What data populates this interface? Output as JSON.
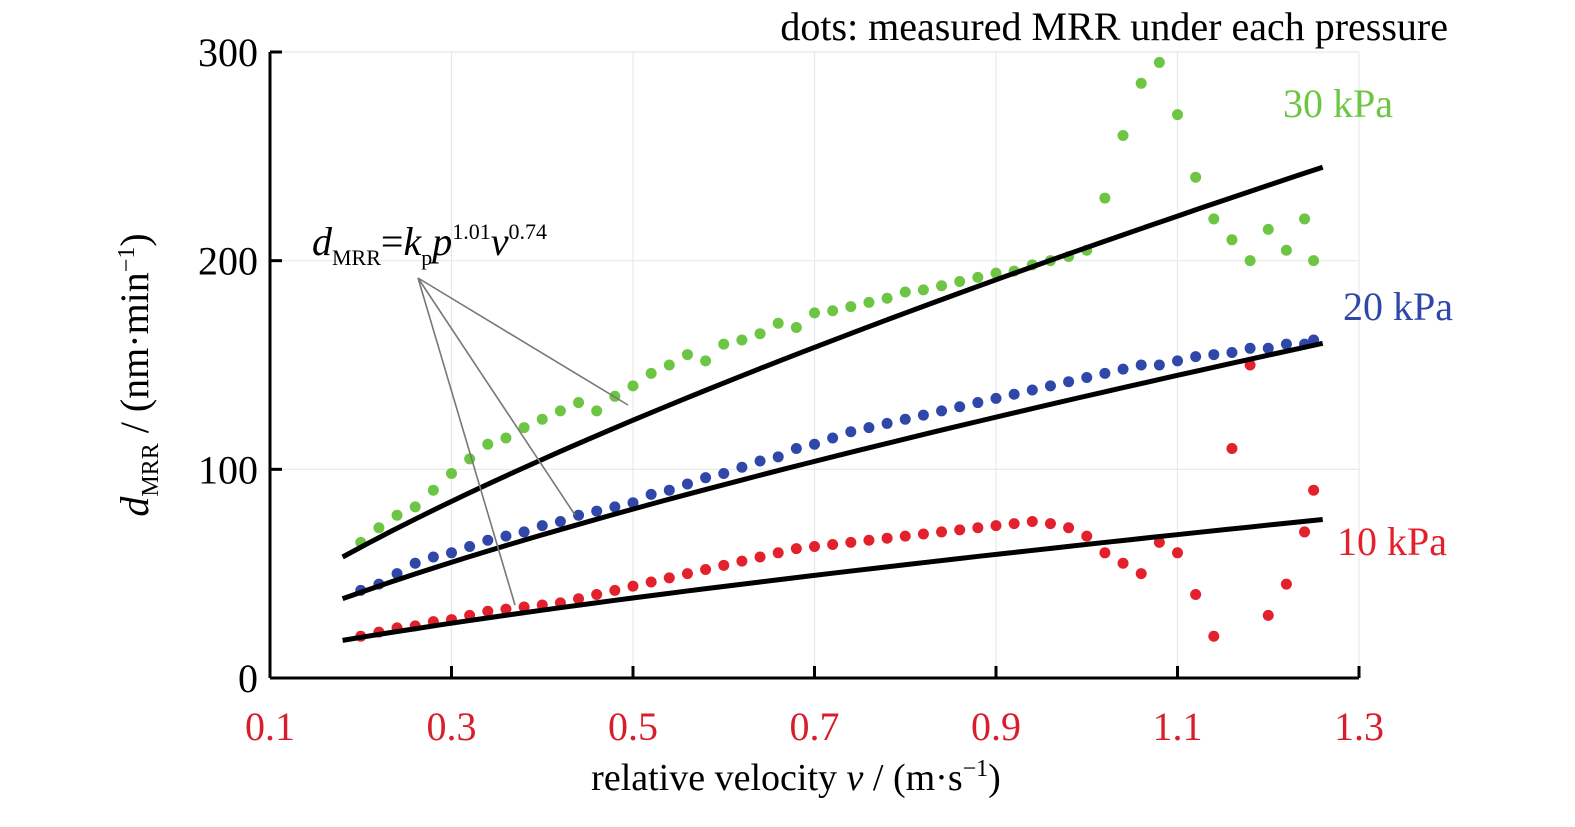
{
  "chart_data": {
    "type": "scatter",
    "title": "dots: measured MRR under each pressure",
    "xlabel": {
      "main": "relative velocity ",
      "var": "v",
      "unit_pre": " / (m·s",
      "sup": "−1",
      "unit_post": ")"
    },
    "ylabel": {
      "var": "d",
      "sub": "MRR",
      "unit_pre": " / (nm·min",
      "sup": "−1",
      "unit_post": ")"
    },
    "xlim": [
      0.1,
      1.3
    ],
    "ylim": [
      0,
      300
    ],
    "xticks": [
      "0.1",
      "0.3",
      "0.5",
      "0.7",
      "0.9",
      "1.1",
      "1.3"
    ],
    "yticks": [
      "0",
      "100",
      "200",
      "300"
    ],
    "x_tick_color": "#d81e2b",
    "grid": true,
    "formula": {
      "d": "d",
      "d_sub": "MRR",
      "eq": "=",
      "k": "k",
      "k_sub": "p",
      "p": "p",
      "p_sup": "1.01",
      "v": "v",
      "v_sup": "0.74"
    },
    "series": [
      {
        "name": "30 kPa",
        "color": "#6cc644",
        "fit": {
          "x": [
            0.18,
            1.26
          ],
          "y": [
            58,
            252
          ]
        },
        "points": [
          [
            0.2,
            65
          ],
          [
            0.22,
            72
          ],
          [
            0.24,
            78
          ],
          [
            0.26,
            82
          ],
          [
            0.28,
            90
          ],
          [
            0.3,
            98
          ],
          [
            0.32,
            105
          ],
          [
            0.34,
            112
          ],
          [
            0.36,
            115
          ],
          [
            0.38,
            120
          ],
          [
            0.4,
            124
          ],
          [
            0.42,
            128
          ],
          [
            0.44,
            132
          ],
          [
            0.46,
            128
          ],
          [
            0.48,
            135
          ],
          [
            0.5,
            140
          ],
          [
            0.52,
            146
          ],
          [
            0.54,
            150
          ],
          [
            0.56,
            155
          ],
          [
            0.58,
            152
          ],
          [
            0.6,
            160
          ],
          [
            0.62,
            162
          ],
          [
            0.64,
            165
          ],
          [
            0.66,
            170
          ],
          [
            0.68,
            168
          ],
          [
            0.7,
            175
          ],
          [
            0.72,
            176
          ],
          [
            0.74,
            178
          ],
          [
            0.76,
            180
          ],
          [
            0.78,
            182
          ],
          [
            0.8,
            185
          ],
          [
            0.82,
            186
          ],
          [
            0.84,
            188
          ],
          [
            0.86,
            190
          ],
          [
            0.88,
            192
          ],
          [
            0.9,
            194
          ],
          [
            0.92,
            195
          ],
          [
            0.94,
            198
          ],
          [
            0.96,
            200
          ],
          [
            0.98,
            202
          ],
          [
            1.0,
            205
          ],
          [
            1.02,
            230
          ],
          [
            1.04,
            260
          ],
          [
            1.06,
            285
          ],
          [
            1.08,
            295
          ],
          [
            1.1,
            270
          ],
          [
            1.12,
            240
          ],
          [
            1.14,
            220
          ],
          [
            1.16,
            210
          ],
          [
            1.18,
            200
          ],
          [
            1.2,
            215
          ],
          [
            1.22,
            205
          ],
          [
            1.24,
            220
          ],
          [
            1.25,
            200
          ]
        ]
      },
      {
        "name": "20 kPa",
        "color": "#2e47a8",
        "fit": {
          "x": [
            0.18,
            1.26
          ],
          "y": [
            38,
            163
          ]
        },
        "points": [
          [
            0.2,
            42
          ],
          [
            0.22,
            45
          ],
          [
            0.24,
            50
          ],
          [
            0.26,
            55
          ],
          [
            0.28,
            58
          ],
          [
            0.3,
            60
          ],
          [
            0.32,
            63
          ],
          [
            0.34,
            66
          ],
          [
            0.36,
            68
          ],
          [
            0.38,
            70
          ],
          [
            0.4,
            73
          ],
          [
            0.42,
            75
          ],
          [
            0.44,
            78
          ],
          [
            0.46,
            80
          ],
          [
            0.48,
            82
          ],
          [
            0.5,
            84
          ],
          [
            0.52,
            88
          ],
          [
            0.54,
            90
          ],
          [
            0.56,
            93
          ],
          [
            0.58,
            96
          ],
          [
            0.6,
            98
          ],
          [
            0.62,
            101
          ],
          [
            0.64,
            104
          ],
          [
            0.66,
            106
          ],
          [
            0.68,
            110
          ],
          [
            0.7,
            112
          ],
          [
            0.72,
            115
          ],
          [
            0.74,
            118
          ],
          [
            0.76,
            120
          ],
          [
            0.78,
            122
          ],
          [
            0.8,
            124
          ],
          [
            0.82,
            126
          ],
          [
            0.84,
            128
          ],
          [
            0.86,
            130
          ],
          [
            0.88,
            132
          ],
          [
            0.9,
            134
          ],
          [
            0.92,
            136
          ],
          [
            0.94,
            138
          ],
          [
            0.96,
            140
          ],
          [
            0.98,
            142
          ],
          [
            1.0,
            144
          ],
          [
            1.02,
            146
          ],
          [
            1.04,
            148
          ],
          [
            1.06,
            150
          ],
          [
            1.08,
            150
          ],
          [
            1.1,
            152
          ],
          [
            1.12,
            154
          ],
          [
            1.14,
            155
          ],
          [
            1.16,
            156
          ],
          [
            1.18,
            158
          ],
          [
            1.2,
            158
          ],
          [
            1.22,
            160
          ],
          [
            1.24,
            160
          ],
          [
            1.25,
            162
          ]
        ]
      },
      {
        "name": "10 kPa",
        "color": "#e3212c",
        "fit": {
          "x": [
            0.18,
            1.26
          ],
          "y": [
            18,
            76
          ]
        },
        "points": [
          [
            0.2,
            20
          ],
          [
            0.22,
            22
          ],
          [
            0.24,
            24
          ],
          [
            0.26,
            25
          ],
          [
            0.28,
            27
          ],
          [
            0.3,
            28
          ],
          [
            0.32,
            30
          ],
          [
            0.34,
            32
          ],
          [
            0.36,
            33
          ],
          [
            0.38,
            34
          ],
          [
            0.4,
            35
          ],
          [
            0.42,
            36
          ],
          [
            0.44,
            38
          ],
          [
            0.46,
            40
          ],
          [
            0.48,
            42
          ],
          [
            0.5,
            44
          ],
          [
            0.52,
            46
          ],
          [
            0.54,
            48
          ],
          [
            0.56,
            50
          ],
          [
            0.58,
            52
          ],
          [
            0.6,
            54
          ],
          [
            0.62,
            56
          ],
          [
            0.64,
            58
          ],
          [
            0.66,
            60
          ],
          [
            0.68,
            62
          ],
          [
            0.7,
            63
          ],
          [
            0.72,
            64
          ],
          [
            0.74,
            65
          ],
          [
            0.76,
            66
          ],
          [
            0.78,
            67
          ],
          [
            0.8,
            68
          ],
          [
            0.82,
            69
          ],
          [
            0.84,
            70
          ],
          [
            0.86,
            71
          ],
          [
            0.88,
            72
          ],
          [
            0.9,
            73
          ],
          [
            0.92,
            74
          ],
          [
            0.94,
            75
          ],
          [
            0.96,
            74
          ],
          [
            0.98,
            72
          ],
          [
            1.0,
            68
          ],
          [
            1.02,
            60
          ],
          [
            1.04,
            55
          ],
          [
            1.06,
            50
          ],
          [
            1.08,
            65
          ],
          [
            1.1,
            60
          ],
          [
            1.12,
            40
          ],
          [
            1.14,
            20
          ],
          [
            1.16,
            110
          ],
          [
            1.18,
            150
          ],
          [
            1.2,
            30
          ],
          [
            1.22,
            45
          ],
          [
            1.24,
            70
          ],
          [
            1.25,
            90
          ]
        ]
      }
    ]
  }
}
